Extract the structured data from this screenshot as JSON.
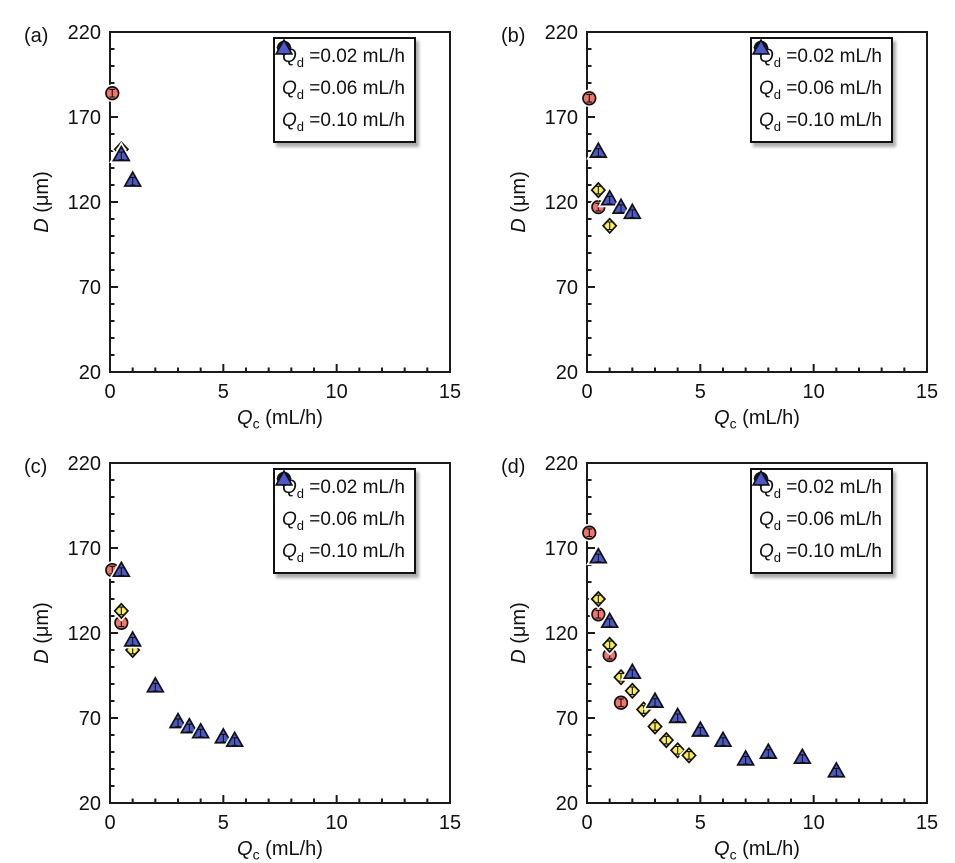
{
  "figure": {
    "background": "#ffffff",
    "text_color": "#111111",
    "axis_color": "#1a1a1a"
  },
  "axes_common": {
    "xlabel_parts": {
      "symbol": "Q",
      "subscript": "c",
      "text": " (mL/h)"
    },
    "ylabel_parts": {
      "symbol": "D",
      "subscript": "",
      "text": " (μm)"
    },
    "x_tick_labels": [
      "0",
      "5",
      "10",
      "15"
    ],
    "y_tick_labels": [
      "220",
      "170",
      "120",
      "70",
      "20"
    ],
    "grid": false,
    "ticks_direction": "in"
  },
  "legend": {
    "position": "top-right",
    "items": [
      {
        "marker": "circle",
        "color": "#f4756c",
        "symbol": "Q",
        "subscript": "d",
        "text": "=0.02 mL/h"
      },
      {
        "marker": "diamond",
        "color": "#fbee4e",
        "symbol": "Q",
        "subscript": "d",
        "text": "=0.06 mL/h"
      },
      {
        "marker": "triangle",
        "color": "#4a5ace",
        "symbol": "Q",
        "subscript": "d",
        "text": "=0.10 mL/h"
      }
    ]
  },
  "chart_data": [
    {
      "id": "a",
      "panel_label": "(a)",
      "type": "scatter",
      "xlabel": "Qc (mL/h)",
      "ylabel": "D (μm)",
      "xlim": [
        0,
        15
      ],
      "ylim": [
        20,
        220
      ],
      "x_major_ticks": [
        0,
        5,
        10,
        15
      ],
      "x_minor_step": 1,
      "y_major_ticks": [
        20,
        70,
        120,
        170,
        220
      ],
      "y_minor_step": 10,
      "legend_position": "top-right",
      "series": [
        {
          "name": "Qd =0.02 mL/h",
          "marker": "circle",
          "color": "#f4756c",
          "points": [
            [
              0.1,
              184
            ]
          ]
        },
        {
          "name": "Qd =0.06 mL/h",
          "marker": "diamond",
          "color": "#fbee4e",
          "points": [
            [
              0.5,
              151
            ]
          ]
        },
        {
          "name": "Qd =0.10 mL/h",
          "marker": "triangle",
          "color": "#4a5ace",
          "points": [
            [
              0.5,
              148
            ],
            [
              1.0,
              133
            ]
          ]
        }
      ]
    },
    {
      "id": "b",
      "panel_label": "(b)",
      "type": "scatter",
      "xlabel": "Qc (mL/h)",
      "ylabel": "D (μm)",
      "xlim": [
        0,
        15
      ],
      "ylim": [
        20,
        220
      ],
      "x_major_ticks": [
        0,
        5,
        10,
        15
      ],
      "x_minor_step": 1,
      "y_major_ticks": [
        20,
        70,
        120,
        170,
        220
      ],
      "y_minor_step": 10,
      "legend_position": "top-right",
      "series": [
        {
          "name": "Qd =0.02 mL/h",
          "marker": "circle",
          "color": "#f4756c",
          "points": [
            [
              0.1,
              181
            ],
            [
              0.5,
              117
            ]
          ]
        },
        {
          "name": "Qd =0.06 mL/h",
          "marker": "diamond",
          "color": "#fbee4e",
          "points": [
            [
              0.5,
              127
            ],
            [
              1.0,
              106
            ]
          ]
        },
        {
          "name": "Qd =0.10 mL/h",
          "marker": "triangle",
          "color": "#4a5ace",
          "points": [
            [
              0.5,
              150
            ],
            [
              1.0,
              122
            ],
            [
              1.5,
              117
            ],
            [
              2.0,
              114
            ]
          ]
        }
      ]
    },
    {
      "id": "c",
      "panel_label": "(c)",
      "type": "scatter",
      "xlabel": "Qc (mL/h)",
      "ylabel": "D (μm)",
      "xlim": [
        0,
        15
      ],
      "ylim": [
        20,
        220
      ],
      "x_major_ticks": [
        0,
        5,
        10,
        15
      ],
      "x_minor_step": 1,
      "y_major_ticks": [
        20,
        70,
        120,
        170,
        220
      ],
      "y_minor_step": 10,
      "legend_position": "top-right",
      "series": [
        {
          "name": "Qd =0.02 mL/h",
          "marker": "circle",
          "color": "#f4756c",
          "points": [
            [
              0.1,
              157
            ],
            [
              0.5,
              126
            ]
          ]
        },
        {
          "name": "Qd =0.06 mL/h",
          "marker": "diamond",
          "color": "#fbee4e",
          "points": [
            [
              0.5,
              133
            ],
            [
              1.0,
              110
            ]
          ]
        },
        {
          "name": "Qd =0.10 mL/h",
          "marker": "triangle",
          "color": "#4a5ace",
          "points": [
            [
              0.5,
              157
            ],
            [
              1.0,
              116
            ],
            [
              2.0,
              89
            ],
            [
              3.0,
              68
            ],
            [
              3.5,
              65
            ],
            [
              4.0,
              62
            ],
            [
              5.0,
              59
            ],
            [
              5.5,
              57
            ]
          ]
        }
      ]
    },
    {
      "id": "d",
      "panel_label": "(d)",
      "type": "scatter",
      "xlabel": "Qc (mL/h)",
      "ylabel": "D (μm)",
      "xlim": [
        0,
        15
      ],
      "ylim": [
        20,
        220
      ],
      "x_major_ticks": [
        0,
        5,
        10,
        15
      ],
      "x_minor_step": 1,
      "y_major_ticks": [
        20,
        70,
        120,
        170,
        220
      ],
      "y_minor_step": 10,
      "legend_position": "top-right",
      "series": [
        {
          "name": "Qd =0.02 mL/h",
          "marker": "circle",
          "color": "#f4756c",
          "points": [
            [
              0.1,
              179
            ],
            [
              0.5,
              131
            ],
            [
              1.0,
              107
            ],
            [
              1.5,
              79
            ]
          ]
        },
        {
          "name": "Qd =0.06 mL/h",
          "marker": "diamond",
          "color": "#fbee4e",
          "points": [
            [
              0.5,
              140
            ],
            [
              1.0,
              113
            ],
            [
              1.5,
              94
            ],
            [
              2.0,
              86
            ],
            [
              2.5,
              75
            ],
            [
              3.0,
              65
            ],
            [
              3.5,
              57
            ],
            [
              4.0,
              51
            ],
            [
              4.5,
              48
            ]
          ]
        },
        {
          "name": "Qd =0.10 mL/h",
          "marker": "triangle",
          "color": "#4a5ace",
          "points": [
            [
              0.5,
              165
            ],
            [
              1.0,
              127
            ],
            [
              2.0,
              97
            ],
            [
              3.0,
              80
            ],
            [
              4.0,
              71
            ],
            [
              5.0,
              63
            ],
            [
              6.0,
              57
            ],
            [
              7.0,
              46
            ],
            [
              8.0,
              50
            ],
            [
              9.5,
              47
            ],
            [
              11.0,
              39
            ]
          ]
        }
      ]
    }
  ]
}
